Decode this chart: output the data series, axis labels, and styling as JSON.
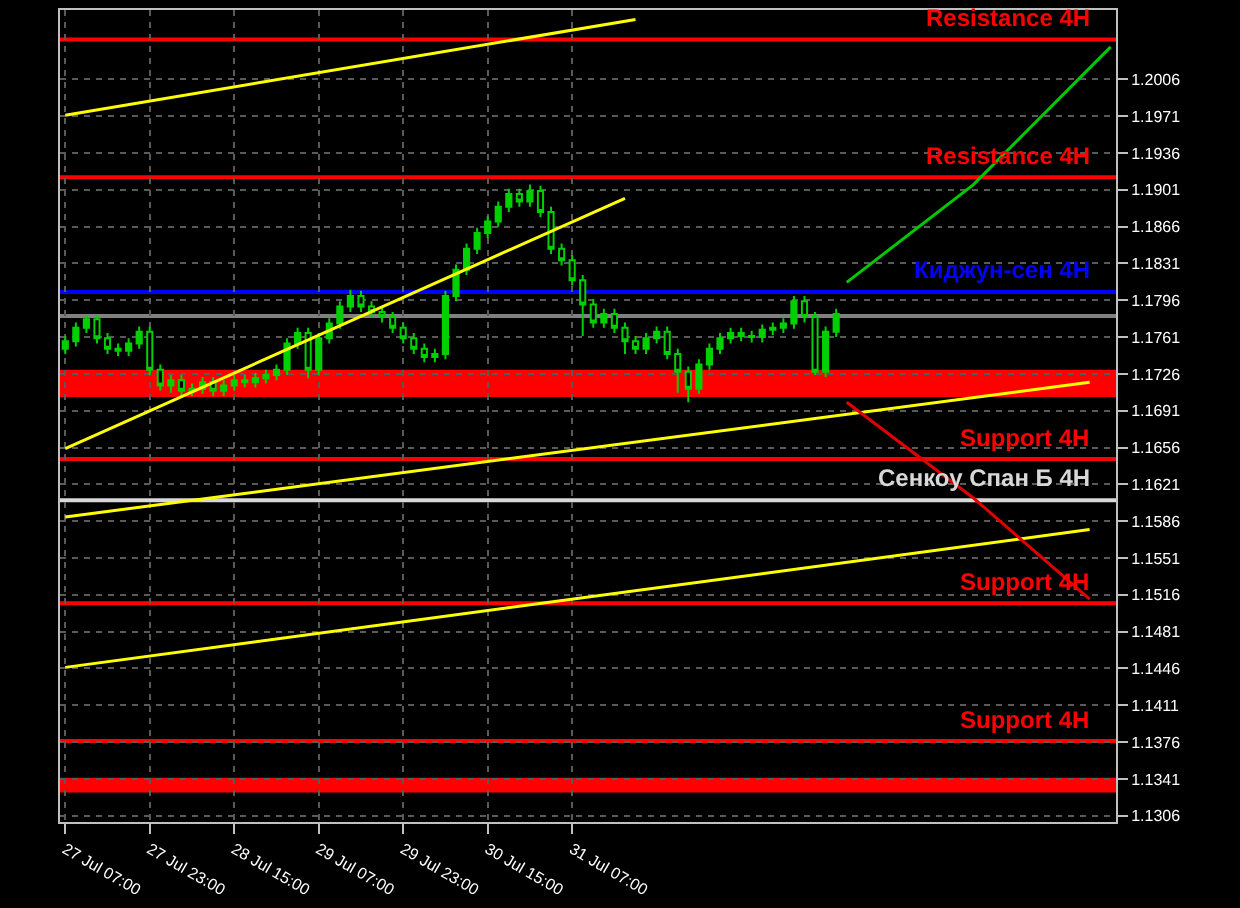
{
  "chart_data": {
    "type": "candlestick",
    "color": "#00d000",
    "categories": [
      "27 Jul 07:00",
      null,
      null,
      null,
      null,
      null,
      null,
      null,
      "27 Jul 23:00",
      null,
      null,
      null,
      null,
      null,
      null,
      null,
      "28 Jul 15:00",
      null,
      null,
      null,
      null,
      null,
      null,
      null,
      "29 Jul 07:00",
      null,
      null,
      null,
      null,
      null,
      null,
      null,
      "29 Jul 23:00",
      null,
      null,
      null,
      null,
      null,
      null,
      null,
      "30 Jul 15:00",
      null,
      null,
      null,
      null,
      null,
      null,
      null,
      "31 Jul 07:00",
      null,
      null,
      null,
      null,
      null,
      null,
      null,
      null,
      null,
      null,
      null,
      null,
      null,
      null,
      null,
      null,
      null,
      null,
      null,
      null,
      null,
      null,
      null,
      null,
      null,
      null,
      null,
      null,
      null,
      null,
      null,
      null,
      null,
      null,
      null,
      null,
      null,
      null,
      null,
      null,
      null,
      null,
      null,
      null,
      null,
      null,
      null,
      null,
      null,
      null,
      null
    ],
    "ohlc": [
      [
        1.175,
        1.1762,
        1.1745,
        1.1757
      ],
      [
        1.1757,
        1.1775,
        1.1752,
        1.177
      ],
      [
        1.177,
        1.1781,
        1.1765,
        1.1778
      ],
      [
        1.1778,
        1.1781,
        1.1755,
        1.176
      ],
      [
        1.176,
        1.1765,
        1.1745,
        1.175
      ],
      [
        1.175,
        1.1755,
        1.1743,
        1.1748
      ],
      [
        1.1748,
        1.176,
        1.1743,
        1.1755
      ],
      [
        1.1755,
        1.1771,
        1.175,
        1.1766
      ],
      [
        1.1766,
        1.1771,
        1.1725,
        1.173
      ],
      [
        1.173,
        1.1735,
        1.171,
        1.1715
      ],
      [
        1.1715,
        1.1725,
        1.1708,
        1.172
      ],
      [
        1.172,
        1.1725,
        1.1705,
        1.171
      ],
      [
        1.171,
        1.1717,
        1.1705,
        1.1712
      ],
      [
        1.1712,
        1.1723,
        1.1707,
        1.1718
      ],
      [
        1.1718,
        1.1723,
        1.1705,
        1.171
      ],
      [
        1.171,
        1.172,
        1.1705,
        1.1715
      ],
      [
        1.1715,
        1.1725,
        1.171,
        1.172
      ],
      [
        1.172,
        1.1725,
        1.1713,
        1.1718
      ],
      [
        1.1718,
        1.1727,
        1.1713,
        1.1722
      ],
      [
        1.1722,
        1.173,
        1.1717,
        1.1725
      ],
      [
        1.1725,
        1.1735,
        1.172,
        1.173
      ],
      [
        1.173,
        1.176,
        1.1725,
        1.1755
      ],
      [
        1.1755,
        1.177,
        1.175,
        1.1765
      ],
      [
        1.1765,
        1.177,
        1.1722,
        1.173
      ],
      [
        1.173,
        1.1765,
        1.1725,
        1.176
      ],
      [
        1.176,
        1.1779,
        1.1755,
        1.1774
      ],
      [
        1.1774,
        1.1795,
        1.1769,
        1.179
      ],
      [
        1.179,
        1.1806,
        1.1785,
        1.18
      ],
      [
        1.18,
        1.1805,
        1.1785,
        1.179
      ],
      [
        1.179,
        1.1795,
        1.178,
        1.1785
      ],
      [
        1.1785,
        1.179,
        1.1775,
        1.178
      ],
      [
        1.178,
        1.1785,
        1.1765,
        1.177
      ],
      [
        1.177,
        1.1775,
        1.1755,
        1.176
      ],
      [
        1.176,
        1.1765,
        1.1745,
        1.175
      ],
      [
        1.175,
        1.1755,
        1.1737,
        1.1742
      ],
      [
        1.1742,
        1.175,
        1.1737,
        1.1745
      ],
      [
        1.1745,
        1.1805,
        1.174,
        1.18
      ],
      [
        1.18,
        1.183,
        1.1795,
        1.1825
      ],
      [
        1.1825,
        1.185,
        1.182,
        1.1845
      ],
      [
        1.1845,
        1.1865,
        1.184,
        1.186
      ],
      [
        1.186,
        1.1876,
        1.1855,
        1.1871
      ],
      [
        1.1871,
        1.189,
        1.1866,
        1.1885
      ],
      [
        1.1885,
        1.1902,
        1.188,
        1.1897
      ],
      [
        1.1897,
        1.1902,
        1.1885,
        1.189
      ],
      [
        1.189,
        1.1906,
        1.1885,
        1.19
      ],
      [
        1.19,
        1.1905,
        1.1875,
        1.188
      ],
      [
        1.188,
        1.1885,
        1.184,
        1.1845
      ],
      [
        1.1845,
        1.185,
        1.1829,
        1.1834
      ],
      [
        1.1834,
        1.1839,
        1.181,
        1.1815
      ],
      [
        1.1815,
        1.182,
        1.1762,
        1.1792
      ],
      [
        1.1792,
        1.1797,
        1.177,
        1.1775
      ],
      [
        1.1775,
        1.1788,
        1.177,
        1.1783
      ],
      [
        1.1783,
        1.1788,
        1.1765,
        1.177
      ],
      [
        1.177,
        1.1775,
        1.1745,
        1.1757
      ],
      [
        1.1757,
        1.1762,
        1.1745,
        1.175
      ],
      [
        1.175,
        1.1765,
        1.1745,
        1.176
      ],
      [
        1.176,
        1.1771,
        1.1755,
        1.1766
      ],
      [
        1.1766,
        1.1771,
        1.174,
        1.1745
      ],
      [
        1.1745,
        1.175,
        1.1708,
        1.1728
      ],
      [
        1.1728,
        1.1733,
        1.1699,
        1.1712
      ],
      [
        1.1712,
        1.174,
        1.1707,
        1.1735
      ],
      [
        1.1735,
        1.1755,
        1.173,
        1.175
      ],
      [
        1.175,
        1.1765,
        1.1745,
        1.176
      ],
      [
        1.176,
        1.177,
        1.1755,
        1.1765
      ],
      [
        1.1765,
        1.177,
        1.1757,
        1.1762
      ],
      [
        1.1762,
        1.1767,
        1.1756,
        1.1761
      ],
      [
        1.1761,
        1.1773,
        1.1756,
        1.1768
      ],
      [
        1.1768,
        1.1775,
        1.1763,
        1.177
      ],
      [
        1.177,
        1.1779,
        1.1765,
        1.1774
      ],
      [
        1.1774,
        1.18,
        1.1769,
        1.1795
      ],
      [
        1.1795,
        1.18,
        1.1775,
        1.178
      ],
      [
        1.178,
        1.1785,
        1.1725,
        1.1728
      ],
      [
        1.1728,
        1.1771,
        1.1723,
        1.1766
      ],
      [
        1.1766,
        1.1788,
        1.1761,
        1.1783
      ],
      null,
      null,
      null,
      null,
      null,
      null,
      null,
      null,
      null,
      null,
      null,
      null,
      null,
      null,
      null,
      null,
      null,
      null,
      null,
      null,
      null,
      null,
      null,
      null,
      null,
      null
    ],
    "series": [
      {
        "type": "line",
        "color": "#ffff00",
        "values": [
          1.1972,
          null,
          null,
          null,
          null,
          null,
          null,
          null,
          null,
          null,
          null,
          null,
          null,
          null,
          null,
          null,
          null,
          null,
          null,
          null,
          null,
          null,
          null,
          null,
          null,
          null,
          null,
          null,
          null,
          null,
          null,
          null,
          null,
          null,
          null,
          null,
          null,
          null,
          null,
          null,
          null,
          null,
          null,
          null,
          null,
          null,
          null,
          null,
          null,
          null,
          null,
          null,
          null,
          null,
          1.2063,
          null,
          null,
          null,
          null,
          null,
          null,
          null,
          null,
          null,
          null,
          null,
          null,
          null,
          null,
          null,
          null,
          null,
          null,
          null,
          null,
          null,
          null,
          null,
          null,
          null,
          null,
          null,
          null,
          null,
          null,
          null,
          null,
          null,
          null,
          null,
          null,
          null,
          null,
          null,
          null,
          null,
          null,
          null,
          null,
          null
        ]
      },
      {
        "type": "line",
        "color": "#ffff00",
        "values": [
          1.1655,
          null,
          null,
          null,
          null,
          null,
          null,
          null,
          null,
          null,
          null,
          null,
          null,
          null,
          null,
          null,
          null,
          null,
          null,
          null,
          null,
          null,
          null,
          null,
          null,
          null,
          null,
          null,
          null,
          null,
          null,
          null,
          null,
          null,
          null,
          null,
          null,
          null,
          null,
          null,
          null,
          null,
          null,
          null,
          null,
          null,
          null,
          null,
          null,
          null,
          null,
          null,
          null,
          1.1893,
          null,
          null,
          null,
          null,
          null,
          null,
          null,
          null,
          null,
          null,
          null,
          null,
          null,
          null,
          null,
          null,
          null,
          null,
          null,
          null,
          null,
          null,
          null,
          null,
          null,
          null,
          null,
          null,
          null,
          null,
          null,
          null,
          null,
          null,
          null,
          null,
          null,
          null,
          null,
          null,
          null,
          null,
          null,
          null,
          null,
          null
        ]
      },
      {
        "type": "line",
        "color": "#ffff00",
        "values": [
          1.159,
          null,
          null,
          null,
          null,
          null,
          null,
          null,
          null,
          null,
          null,
          null,
          null,
          null,
          null,
          null,
          null,
          null,
          null,
          null,
          null,
          null,
          null,
          null,
          null,
          null,
          null,
          null,
          null,
          null,
          null,
          null,
          null,
          null,
          null,
          null,
          null,
          null,
          null,
          null,
          null,
          null,
          null,
          null,
          null,
          null,
          null,
          null,
          null,
          null,
          null,
          null,
          null,
          null,
          null,
          null,
          null,
          null,
          null,
          null,
          null,
          null,
          null,
          null,
          null,
          null,
          null,
          null,
          null,
          null,
          null,
          null,
          null,
          null,
          null,
          null,
          null,
          null,
          null,
          null,
          null,
          null,
          null,
          null,
          null,
          null,
          null,
          null,
          null,
          null,
          null,
          null,
          null,
          null,
          null,
          null,
          null,
          1.1718,
          null,
          null
        ]
      },
      {
        "type": "line",
        "color": "#ffff00",
        "values": [
          1.1447,
          null,
          null,
          null,
          null,
          null,
          null,
          null,
          null,
          null,
          null,
          null,
          null,
          null,
          null,
          null,
          null,
          null,
          null,
          null,
          null,
          null,
          null,
          null,
          null,
          null,
          null,
          null,
          null,
          null,
          null,
          null,
          null,
          null,
          null,
          null,
          null,
          null,
          null,
          null,
          null,
          null,
          null,
          null,
          null,
          null,
          null,
          null,
          null,
          null,
          null,
          null,
          null,
          null,
          null,
          null,
          null,
          null,
          null,
          null,
          null,
          null,
          null,
          null,
          null,
          null,
          null,
          null,
          null,
          null,
          null,
          null,
          null,
          null,
          null,
          null,
          null,
          null,
          null,
          null,
          null,
          null,
          null,
          null,
          null,
          null,
          null,
          null,
          null,
          null,
          null,
          null,
          null,
          null,
          null,
          null,
          null,
          1.1578,
          null,
          null
        ]
      },
      {
        "type": "line",
        "color": "#00c800",
        "values": [
          null,
          null,
          null,
          null,
          null,
          null,
          null,
          null,
          null,
          null,
          null,
          null,
          null,
          null,
          null,
          null,
          null,
          null,
          null,
          null,
          null,
          null,
          null,
          null,
          null,
          null,
          null,
          null,
          null,
          null,
          null,
          null,
          null,
          null,
          null,
          null,
          null,
          null,
          null,
          null,
          null,
          null,
          null,
          null,
          null,
          null,
          null,
          null,
          null,
          null,
          null,
          null,
          null,
          null,
          null,
          null,
          null,
          null,
          null,
          null,
          null,
          null,
          null,
          null,
          null,
          null,
          null,
          null,
          null,
          null,
          null,
          null,
          null,
          null,
          1.1813,
          null,
          null,
          null,
          null,
          null,
          null,
          null,
          null,
          null,
          null,
          null,
          1.1906,
          null,
          null,
          null,
          null,
          null,
          null,
          null,
          null,
          null,
          null,
          null,
          null,
          1.2037
        ]
      },
      {
        "type": "line",
        "color": "#e00000",
        "values": [
          null,
          null,
          null,
          null,
          null,
          null,
          null,
          null,
          null,
          null,
          null,
          null,
          null,
          null,
          null,
          null,
          null,
          null,
          null,
          null,
          null,
          null,
          null,
          null,
          null,
          null,
          null,
          null,
          null,
          null,
          null,
          null,
          null,
          null,
          null,
          null,
          null,
          null,
          null,
          null,
          null,
          null,
          null,
          null,
          null,
          null,
          null,
          null,
          null,
          null,
          null,
          null,
          null,
          null,
          null,
          null,
          null,
          null,
          null,
          null,
          null,
          null,
          null,
          null,
          null,
          null,
          null,
          null,
          null,
          null,
          null,
          null,
          null,
          null,
          1.1699,
          null,
          null,
          null,
          null,
          null,
          null,
          null,
          null,
          null,
          null,
          null,
          1.1608,
          null,
          null,
          null,
          null,
          null,
          null,
          null,
          null,
          null,
          null,
          1.1512,
          null,
          null
        ]
      }
    ],
    "ref_lines": [
      {
        "axis": "y",
        "value": 1.2044,
        "label": "Resistance 4H",
        "color": "#ff0000"
      },
      {
        "axis": "y",
        "value": 1.1913,
        "label": "Resistance 4H",
        "color": "#ff0000"
      },
      {
        "axis": "y",
        "value": 1.1804,
        "label": "Киджун-сен 4H",
        "color": "#0000ff"
      },
      {
        "axis": "y",
        "value": 1.1781,
        "color": "#808080"
      },
      {
        "axis": "y",
        "value": 1.1645,
        "label": "Support 4H",
        "color": "#ff0000"
      },
      {
        "axis": "y",
        "value": 1.1606,
        "label": "Сенкоу Спан Б 4H",
        "color": "#d8d8d8"
      },
      {
        "axis": "y",
        "value": 1.1508,
        "label": "Support 4H",
        "color": "#ff0000"
      },
      {
        "axis": "y",
        "value": 1.1377,
        "label": "Support 4H",
        "color": "#ff0000"
      }
    ],
    "bands": [
      {
        "axis": "y",
        "from": 1.1704,
        "to": 1.173,
        "color": "#ff0000"
      },
      {
        "axis": "y",
        "from": 1.1328,
        "to": 1.1342,
        "color": "#ff0000"
      }
    ],
    "ylim": [
      1.13,
      1.2072
    ],
    "yticks": [
      1.1306,
      1.1341,
      1.1376,
      1.1411,
      1.1446,
      1.1481,
      1.1516,
      1.1551,
      1.1586,
      1.1621,
      1.1656,
      1.1691,
      1.1726,
      1.1761,
      1.1796,
      1.1831,
      1.1866,
      1.1901,
      1.1936,
      1.1971,
      1.2006
    ],
    "grid": true
  }
}
